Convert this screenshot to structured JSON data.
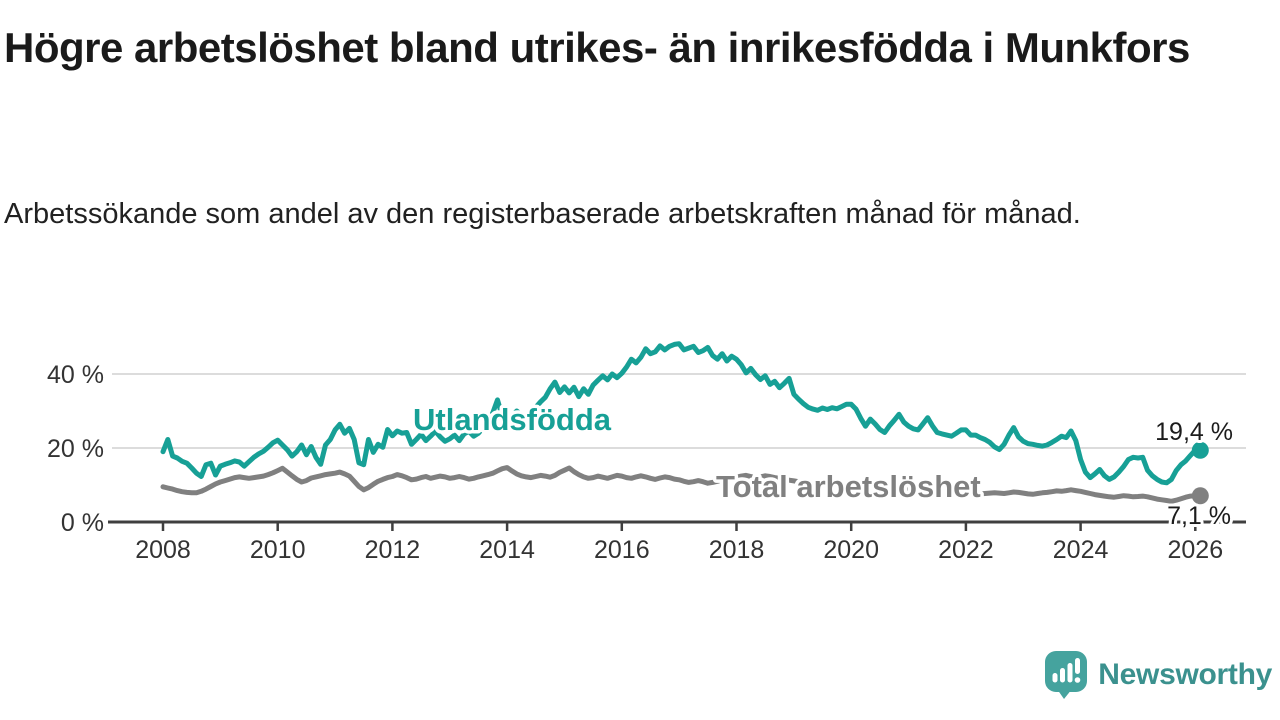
{
  "title": "Högre arbetslöshet bland utrikes- än inrikesfödda i Munkfors",
  "subtitle": "Arbetssökande som andel av den registerbaserade arbetskraften månad för månad.",
  "branding": {
    "name": "Newsworthy",
    "wordmark_color": "#3b918e",
    "icon_color": "#45a39e"
  },
  "colors": {
    "foreign_born_line": "#17a096",
    "total_line": "#808080",
    "grid": "#dcdcdc",
    "axis": "#3f3f3f",
    "tick_text": "#333333",
    "end_label_text": "#1c1c1c"
  },
  "chart_data": {
    "type": "line",
    "title": "Högre arbetslöshet bland utrikes- än inrikesfödda i Munkfors",
    "xlabel": "",
    "ylabel": "Arbetssökande som andel av den registerbaserade arbetskraften",
    "x_unit": "year (monthly points)",
    "y_unit": "%",
    "x_start_year": 2008,
    "x_step_months": 1,
    "xlim": [
      2007.1,
      2027.0
    ],
    "ylim": [
      0,
      50
    ],
    "grid": "horizontal",
    "x_ticks": [
      2008,
      2010,
      2012,
      2014,
      2016,
      2018,
      2020,
      2022,
      2024,
      2026
    ],
    "y_ticks": [
      {
        "value": 0,
        "label": "0 %"
      },
      {
        "value": 20,
        "label": "20 %"
      },
      {
        "value": 40,
        "label": "40 %"
      }
    ],
    "legend_position": "inline-labels",
    "series": [
      {
        "name": "Utlandsfödda",
        "color": "#17a096",
        "end_label": "19,4 %",
        "last_value": 19.4,
        "values": [
          19.0,
          22.3,
          17.8,
          17.3,
          16.4,
          15.9,
          14.6,
          13.2,
          12.3,
          15.5,
          15.9,
          12.7,
          15.1,
          15.6,
          16.0,
          16.5,
          16.2,
          15.1,
          16.3,
          17.5,
          18.4,
          19.1,
          20.2,
          21.4,
          22.1,
          20.8,
          19.5,
          17.8,
          19.0,
          20.8,
          18.2,
          20.4,
          17.5,
          15.6,
          20.8,
          22.3,
          24.9,
          26.4,
          24.0,
          25.3,
          22.3,
          16.0,
          15.5,
          22.3,
          18.8,
          21.0,
          20.2,
          25.0,
          23.3,
          24.6,
          24.0,
          24.2,
          21.0,
          22.3,
          23.7,
          22.0,
          23.2,
          24.5,
          23.0,
          21.8,
          22.5,
          23.5,
          22.0,
          23.8,
          24.5,
          23.2,
          24.0,
          25.5,
          27.0,
          29.5,
          33.0,
          28.5,
          27.0,
          28.5,
          30.0,
          29.0,
          28.0,
          29.5,
          31.0,
          32.5,
          33.7,
          36.0,
          37.8,
          35.0,
          36.5,
          34.9,
          36.4,
          33.9,
          36.0,
          34.5,
          37.0,
          38.3,
          39.5,
          38.4,
          40.0,
          39.0,
          40.2,
          41.9,
          44.0,
          43.0,
          44.5,
          46.8,
          45.5,
          46.0,
          47.6,
          46.5,
          47.5,
          48.0,
          48.2,
          46.5,
          47.0,
          47.5,
          45.8,
          46.3,
          47.2,
          45.0,
          44.0,
          45.5,
          43.5,
          44.8,
          44.0,
          42.5,
          40.3,
          41.5,
          39.8,
          38.5,
          39.5,
          37.2,
          38.0,
          36.3,
          37.5,
          38.8,
          34.5,
          33.2,
          32.0,
          31.0,
          30.5,
          30.2,
          30.8,
          30.4,
          30.9,
          30.6,
          31.2,
          31.8,
          31.8,
          30.5,
          28.0,
          25.9,
          27.8,
          26.5,
          25.0,
          24.2,
          26.0,
          27.5,
          29.1,
          27.0,
          25.9,
          25.2,
          24.9,
          26.5,
          28.2,
          26.0,
          24.2,
          23.8,
          23.5,
          23.2,
          24.0,
          24.9,
          24.9,
          23.5,
          23.5,
          22.8,
          22.3,
          21.5,
          20.3,
          19.6,
          21.0,
          23.5,
          25.5,
          23.0,
          21.8,
          21.2,
          21.0,
          20.7,
          20.5,
          20.8,
          21.5,
          22.3,
          23.2,
          22.8,
          24.6,
          22.0,
          16.9,
          13.5,
          12.0,
          13.0,
          14.2,
          12.5,
          11.5,
          12.2,
          13.5,
          15.0,
          16.9,
          17.5,
          17.3,
          17.5,
          14.0,
          12.5,
          11.5,
          10.8,
          10.6,
          11.5,
          13.9,
          15.5,
          16.5,
          18.0,
          19.4
        ]
      },
      {
        "name": "Total arbetslöshet",
        "color": "#808080",
        "end_label": "7,1 %",
        "last_value": 7.1,
        "values": [
          9.5,
          9.2,
          8.9,
          8.5,
          8.2,
          8.0,
          7.9,
          7.9,
          8.3,
          8.9,
          9.6,
          10.3,
          10.8,
          11.2,
          11.6,
          12.0,
          12.2,
          12.0,
          11.8,
          12.0,
          12.2,
          12.4,
          12.8,
          13.3,
          13.9,
          14.5,
          13.5,
          12.5,
          11.5,
          10.8,
          11.2,
          11.9,
          12.2,
          12.5,
          12.8,
          13.0,
          13.2,
          13.5,
          13.0,
          12.4,
          11.0,
          9.6,
          8.7,
          9.3,
          10.2,
          11.0,
          11.5,
          12.0,
          12.3,
          12.8,
          12.5,
          12.0,
          11.4,
          11.6,
          12.0,
          12.3,
          11.8,
          12.1,
          12.4,
          12.2,
          11.8,
          12.0,
          12.3,
          12.0,
          11.6,
          11.8,
          12.2,
          12.5,
          12.8,
          13.2,
          13.8,
          14.4,
          14.7,
          13.8,
          13.0,
          12.5,
          12.2,
          12.0,
          12.3,
          12.6,
          12.4,
          12.1,
          12.6,
          13.4,
          14.0,
          14.6,
          13.6,
          12.8,
          12.2,
          11.8,
          12.0,
          12.4,
          12.1,
          11.8,
          12.2,
          12.6,
          12.4,
          12.0,
          11.8,
          12.2,
          12.5,
          12.2,
          11.8,
          11.5,
          11.9,
          12.2,
          12.0,
          11.6,
          11.4,
          11.0,
          10.7,
          10.9,
          11.2,
          10.9,
          10.5,
          10.7,
          11.0,
          11.3,
          11.6,
          11.9,
          12.1,
          12.4,
          12.6,
          12.3,
          12.0,
          12.2,
          12.5,
          12.3,
          12.0,
          11.8,
          11.5,
          11.3,
          11.1,
          10.9,
          10.7,
          10.5,
          10.3,
          10.1,
          10.0,
          9.9,
          9.8,
          9.7,
          9.6,
          9.5,
          9.6,
          9.8,
          10.2,
          10.5,
          10.3,
          10.0,
          9.8,
          9.6,
          9.4,
          9.2,
          9.0,
          8.9,
          8.8,
          8.7,
          8.6,
          8.5,
          8.4,
          8.3,
          8.2,
          8.1,
          8.0,
          7.9,
          7.9,
          7.8,
          7.9,
          7.8,
          7.7,
          7.6,
          7.7,
          7.8,
          7.9,
          7.8,
          7.7,
          7.9,
          8.1,
          8.0,
          7.8,
          7.6,
          7.5,
          7.7,
          7.9,
          8.0,
          8.2,
          8.4,
          8.3,
          8.5,
          8.7,
          8.5,
          8.3,
          8.0,
          7.7,
          7.4,
          7.2,
          7.0,
          6.8,
          6.7,
          6.9,
          7.1,
          7.0,
          6.8,
          6.9,
          7.0,
          6.8,
          6.5,
          6.2,
          6.0,
          5.8,
          5.6,
          5.9,
          6.3,
          6.7,
          7.0,
          7.1
        ]
      }
    ]
  }
}
